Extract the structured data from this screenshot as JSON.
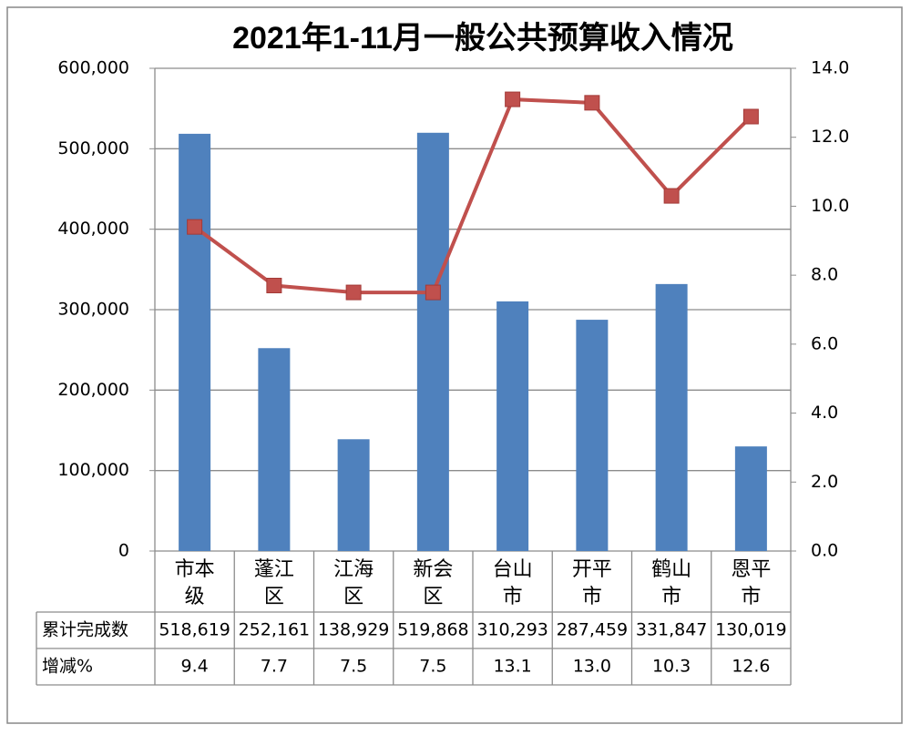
{
  "chart_data": {
    "type": "bar-line",
    "title": "2021年1-11月一般公共预算收入情况",
    "categories": [
      "市本级",
      "蓬江区",
      "江海区",
      "新会区",
      "台山市",
      "开平市",
      "鹤山市",
      "恩平市"
    ],
    "series": [
      {
        "name": "累计完成数",
        "type": "bar",
        "color": "#4f81bd",
        "axis": "y",
        "values": [
          518619,
          252161,
          138929,
          519868,
          310293,
          287459,
          331847,
          130019
        ],
        "value_labels": [
          "518,619",
          "252,161",
          "138,929",
          "519,868",
          "310,293",
          "287,459",
          "331,847",
          "130,019"
        ]
      },
      {
        "name": "增减%",
        "type": "line",
        "color": "#c0504d",
        "axis": "y2",
        "values": [
          9.4,
          7.7,
          7.5,
          7.5,
          13.1,
          13.0,
          10.3,
          12.6
        ],
        "value_labels": [
          "9.4",
          "7.7",
          "7.5",
          "7.5",
          "13.1",
          "13.0",
          "10.3",
          "12.6"
        ]
      }
    ],
    "ylim": [
      0,
      600000
    ],
    "yticks": [
      0,
      {
        "value": 100000,
        "label": "100,000"
      },
      {
        "value": 200000,
        "label": "200,000"
      },
      {
        "value": 300000,
        "label": "300,000"
      },
      {
        "value": 400000,
        "label": "400,000"
      },
      {
        "value": 500000,
        "label": "500,000"
      },
      {
        "value": 600000,
        "label": "600,000"
      }
    ],
    "y2lim": [
      0,
      14
    ],
    "y2ticks": [
      {
        "value": 0,
        "label": "0.0"
      },
      {
        "value": 2,
        "label": "2.0"
      },
      {
        "value": 4,
        "label": "4.0"
      },
      {
        "value": 6,
        "label": "6.0"
      },
      {
        "value": 8,
        "label": "8.0"
      },
      {
        "value": 10,
        "label": "10.0"
      },
      {
        "value": 12,
        "label": "12.0"
      },
      {
        "value": 14,
        "label": "14.0"
      }
    ],
    "grid": true
  }
}
